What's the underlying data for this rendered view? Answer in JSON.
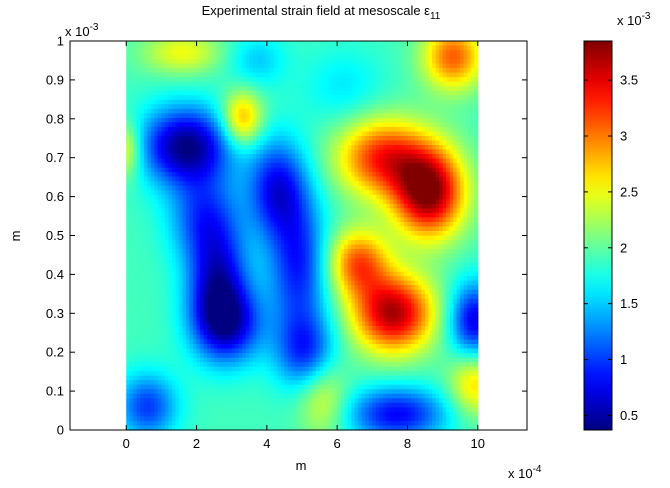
{
  "chart_data": {
    "type": "heatmap",
    "title": "Experimental strain field at mesoscale ε",
    "title_subscript": "11",
    "xlabel": "m",
    "ylabel": "m",
    "x_multiplier": "x 10",
    "x_exponent": "-4",
    "y_multiplier": "x 10",
    "y_exponent": "-3",
    "colorbar_multiplier": "x 10",
    "colorbar_exponent": "-3",
    "xlim": [
      -1.6,
      11.4
    ],
    "ylim": [
      0,
      1
    ],
    "x_ticks": [
      0,
      2,
      4,
      6,
      8,
      10
    ],
    "x_tick_labels": [
      "0",
      "2",
      "4",
      "6",
      "8",
      "10"
    ],
    "y_ticks": [
      0,
      0.1,
      0.2,
      0.3,
      0.4,
      0.5,
      0.6,
      0.7,
      0.8,
      0.9,
      1
    ],
    "y_tick_labels": [
      "0",
      "0.1",
      "0.2",
      "0.3",
      "0.4",
      "0.5",
      "0.6",
      "0.7",
      "0.8",
      "0.9",
      "1"
    ],
    "data_extent": {
      "x": [
        0,
        10
      ],
      "y": [
        0,
        1
      ]
    },
    "colorbar": {
      "colormap": "jet",
      "range": [
        0.37,
        3.85
      ],
      "ticks": [
        0.5,
        1,
        1.5,
        2,
        2.5,
        3,
        3.5
      ],
      "tick_labels": [
        "0.5",
        "1",
        "1.5",
        "2",
        "2.5",
        "3",
        "3.5"
      ]
    },
    "field": {
      "baseline": 1.9,
      "features": [
        {
          "x": 1.7,
          "y": 0.73,
          "amplitude": -1.5,
          "sx": 0.9,
          "sy": 0.07
        },
        {
          "x": 2.2,
          "y": 0.55,
          "amplitude": -0.8,
          "sx": 0.7,
          "sy": 0.08
        },
        {
          "x": 2.6,
          "y": 0.38,
          "amplitude": -1.2,
          "sx": 0.6,
          "sy": 0.1
        },
        {
          "x": 2.9,
          "y": 0.27,
          "amplitude": -1.1,
          "sx": 0.7,
          "sy": 0.07
        },
        {
          "x": 4.3,
          "y": 0.62,
          "amplitude": -1.1,
          "sx": 0.6,
          "sy": 0.09
        },
        {
          "x": 4.9,
          "y": 0.42,
          "amplitude": -1.0,
          "sx": 0.6,
          "sy": 0.12
        },
        {
          "x": 5.1,
          "y": 0.2,
          "amplitude": -0.9,
          "sx": 0.6,
          "sy": 0.07
        },
        {
          "x": 7.7,
          "y": 0.04,
          "amplitude": -1.1,
          "sx": 1.0,
          "sy": 0.05
        },
        {
          "x": 9.9,
          "y": 0.28,
          "amplitude": -1.2,
          "sx": 0.5,
          "sy": 0.07
        },
        {
          "x": 0.6,
          "y": 0.06,
          "amplitude": -0.9,
          "sx": 0.6,
          "sy": 0.06
        },
        {
          "x": 8.6,
          "y": 0.61,
          "amplitude": 1.95,
          "sx": 0.7,
          "sy": 0.08
        },
        {
          "x": 7.3,
          "y": 0.7,
          "amplitude": 1.4,
          "sx": 0.9,
          "sy": 0.07
        },
        {
          "x": 7.6,
          "y": 0.3,
          "amplitude": 1.8,
          "sx": 0.8,
          "sy": 0.07
        },
        {
          "x": 6.6,
          "y": 0.43,
          "amplitude": 1.2,
          "sx": 0.6,
          "sy": 0.06
        },
        {
          "x": 3.3,
          "y": 0.8,
          "amplitude": 1.0,
          "sx": 0.4,
          "sy": 0.05
        },
        {
          "x": 9.3,
          "y": 0.96,
          "amplitude": 1.2,
          "sx": 0.6,
          "sy": 0.06
        },
        {
          "x": 1.6,
          "y": 0.97,
          "amplitude": 0.6,
          "sx": 0.8,
          "sy": 0.04
        },
        {
          "x": 0.0,
          "y": 0.72,
          "amplitude": 0.7,
          "sx": 0.3,
          "sy": 0.05
        },
        {
          "x": 5.6,
          "y": 0.08,
          "amplitude": 0.6,
          "sx": 0.5,
          "sy": 0.07
        },
        {
          "x": 9.9,
          "y": 0.12,
          "amplitude": 0.8,
          "sx": 0.5,
          "sy": 0.06
        },
        {
          "x": 3.7,
          "y": 0.95,
          "amplitude": -0.4,
          "sx": 0.6,
          "sy": 0.05
        },
        {
          "x": 6.2,
          "y": 0.88,
          "amplitude": -0.3,
          "sx": 0.8,
          "sy": 0.07
        }
      ]
    }
  }
}
